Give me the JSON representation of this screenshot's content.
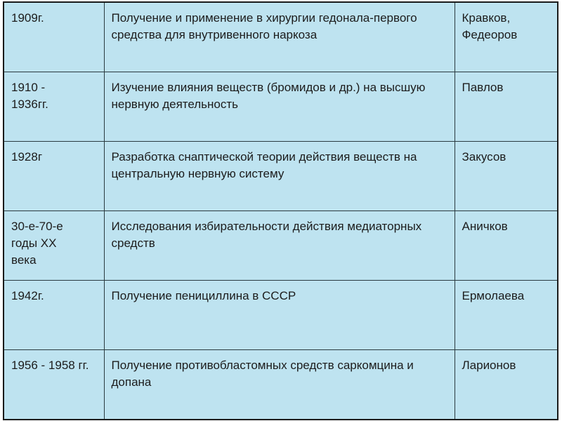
{
  "rows": [
    {
      "date": "1909г.",
      "event": "Получение и применение в хирургии гедонала-первого средства для внутривенного наркоза",
      "person": "Кравков, Федеоров"
    },
    {
      "date": "1910 - 1936гг.",
      "event": "Изучение влияния веществ (бромидов и др.) на высшую нервную деятельность",
      "person": "Павлов"
    },
    {
      "date": "1928г",
      "event": "Разработка снаптической теории действия веществ на центральную нервную систему",
      "person": "Закусов"
    },
    {
      "date": "30-е-70-е годы XX века",
      "event": "Исследования избирательности действия медиаторных средств",
      "person": "Аничков"
    },
    {
      "date": "1942г.",
      "event": "Получение пенициллина в СССР",
      "person": "Ермолаева"
    },
    {
      "date": "1956 - 1958 гг.",
      "event": "Получение противобластомных средств саркомцина и допана",
      "person": "Ларионов"
    }
  ]
}
